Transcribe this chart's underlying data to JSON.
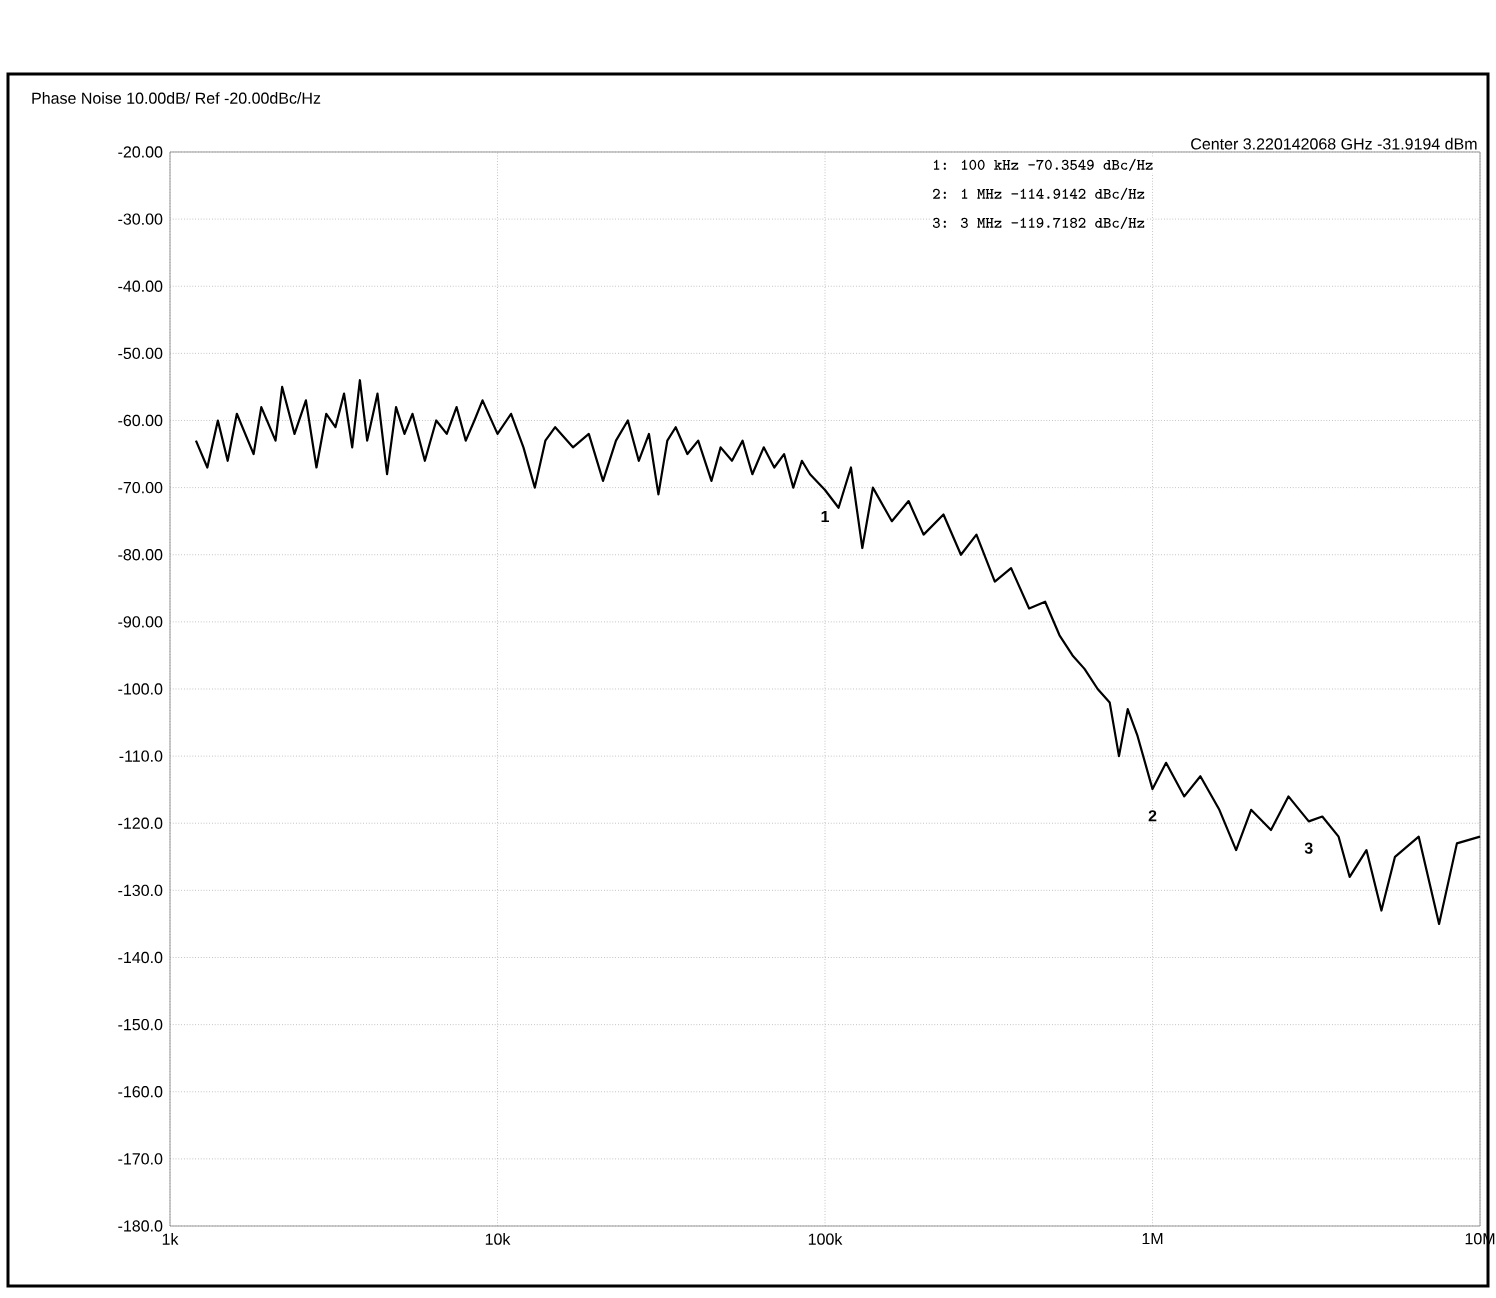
{
  "chart_data": {
    "type": "line",
    "title": "Phase Noise 10.00dB/ Ref -20.00dBc/Hz",
    "annotations": [
      "Center 3.220142068 GHz   -31.9194 dBm",
      "1:   100 kHz      -70.3549 dBc/Hz",
      "2:   1 MHz        -114.9142 dBc/Hz",
      "3:   3 MHz        -119.7182 dBc/Hz",
      {
        "text": "1",
        "x": 100000,
        "y": -70.3549
      },
      {
        "text": "2",
        "x": 1000000,
        "y": -114.9142
      },
      {
        "text": "3",
        "x": 3000000,
        "y": -119.7182
      }
    ],
    "x": [
      1200,
      1300,
      1400,
      1500,
      1600,
      1800,
      1900,
      2100,
      2200,
      2400,
      2600,
      2800,
      3000,
      3200,
      3400,
      3600,
      3800,
      4000,
      4300,
      4600,
      4900,
      5200,
      5500,
      6000,
      6500,
      7000,
      7500,
      8000,
      8500,
      9000,
      10000,
      11000,
      12000,
      13000,
      14000,
      15000,
      17000,
      19000,
      21000,
      23000,
      25000,
      27000,
      29000,
      31000,
      33000,
      35000,
      38000,
      41000,
      45000,
      48000,
      52000,
      56000,
      60000,
      65000,
      70000,
      75000,
      80000,
      85000,
      90000,
      100000,
      110000,
      120000,
      130000,
      140000,
      160000,
      180000,
      200000,
      230000,
      260000,
      290000,
      330000,
      370000,
      420000,
      470000,
      520000,
      570000,
      620000,
      680000,
      740000,
      790000,
      840000,
      900000,
      1000000,
      1100000,
      1250000,
      1400000,
      1600000,
      1800000,
      2000000,
      2300000,
      2600000,
      3000000,
      3300000,
      3700000,
      4000000,
      4500000,
      5000000,
      5500000,
      6500000,
      7500000,
      8500000,
      10000000
    ],
    "values": [
      -63,
      -67,
      -60,
      -66,
      -59,
      -65,
      -58,
      -63,
      -55,
      -62,
      -57,
      -67,
      -59,
      -61,
      -56,
      -64,
      -54,
      -63,
      -56,
      -68,
      -58,
      -62,
      -59,
      -66,
      -60,
      -62,
      -58,
      -63,
      -60,
      -57,
      -62,
      -59,
      -64,
      -70,
      -63,
      -61,
      -64,
      -62,
      -69,
      -63,
      -60,
      -66,
      -62,
      -71,
      -63,
      -61,
      -65,
      -63,
      -69,
      -64,
      -66,
      -63,
      -68,
      -64,
      -67,
      -65,
      -70,
      -66,
      -68,
      -70.3549,
      -73,
      -67,
      -79,
      -70,
      -75,
      -72,
      -77,
      -74,
      -80,
      -77,
      -84,
      -82,
      -88,
      -87,
      -92,
      -95,
      -97,
      -100,
      -102,
      -110,
      -103,
      -107,
      -114.9142,
      -111,
      -116,
      -113,
      -118,
      -124,
      -118,
      -121,
      -116,
      -119.7182,
      -119,
      -122,
      -128,
      -124,
      -133,
      -125,
      -122,
      -135,
      -123,
      -122
    ],
    "color": "#000000",
    "line_style": "solid",
    "log": "x",
    "grid": true,
    "xlim": [
      1000,
      10000000
    ],
    "ylim": [
      -180,
      -20
    ],
    "xticks": [
      {
        "value": 1000,
        "label": "1k"
      },
      {
        "value": 10000,
        "label": "10k"
      },
      {
        "value": 100000,
        "label": "100k"
      },
      {
        "value": 1000000,
        "label": "1M"
      },
      {
        "value": 10000000,
        "label": "10M"
      }
    ],
    "yticks": [
      {
        "value": -20,
        "label": "-20.00"
      },
      {
        "value": -30,
        "label": "-30.00"
      },
      {
        "value": -40,
        "label": "-40.00"
      },
      {
        "value": -50,
        "label": "-50.00"
      },
      {
        "value": -60,
        "label": "-60.00"
      },
      {
        "value": -70,
        "label": "-70.00"
      },
      {
        "value": -80,
        "label": "-80.00"
      },
      {
        "value": -90,
        "label": "-90.00"
      },
      {
        "value": -100,
        "label": "-100.0"
      },
      {
        "value": -110,
        "label": "-110.0"
      },
      {
        "value": -120,
        "label": "-120.0"
      },
      {
        "value": -130,
        "label": "-130.0"
      },
      {
        "value": -140,
        "label": "-140.0"
      },
      {
        "value": -150,
        "label": "-150.0"
      },
      {
        "value": -160,
        "label": "-160.0"
      },
      {
        "value": -170,
        "label": "-170.0"
      },
      {
        "value": -180,
        "label": "-180.0"
      }
    ]
  }
}
